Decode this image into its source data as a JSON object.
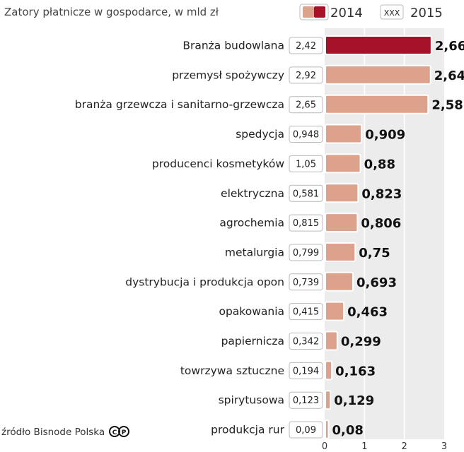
{
  "header": {
    "title": "Zatory płatnicze w gospodarce, w mld zł"
  },
  "legend": {
    "label_2014": "2014",
    "sample_value": "XXX",
    "label_2015": "2015"
  },
  "source": {
    "text": "źródło Bisnode Polska",
    "license_icon": "cc-copyright-icon"
  },
  "colors": {
    "bar": "#dda28c",
    "bar_highlight": "#a5122a",
    "plot_bg": "#ececec",
    "grid": "#ffffff"
  },
  "chart_data": {
    "type": "bar",
    "orientation": "horizontal",
    "title": "Zatory płatnicze w gospodarce, w mld zł",
    "xlabel": "",
    "ylabel": "",
    "xlim": [
      0,
      3
    ],
    "ticks": [
      "0",
      "1",
      "2",
      "3"
    ],
    "grid": true,
    "legend_position": "top-right",
    "highlight_index": 0,
    "categories": [
      {
        "label": "Branża budowlana",
        "v2014": "2,42",
        "v2015": "2,66",
        "value": 2.66
      },
      {
        "label": "przemysł spożywczy",
        "v2014": "2,92",
        "v2015": "2,64",
        "value": 2.64
      },
      {
        "label": "branża grzewcza i sanitarno-grzewcza",
        "v2014": "2,65",
        "v2015": "2,58",
        "value": 2.58
      },
      {
        "label": "spedycja",
        "v2014": "0,948",
        "v2015": "0,909",
        "value": 0.909
      },
      {
        "label": "producenci kosmetyków",
        "v2014": "1,05",
        "v2015": "0,88",
        "value": 0.88
      },
      {
        "label": "elektryczna",
        "v2014": "0,581",
        "v2015": "0,823",
        "value": 0.823
      },
      {
        "label": "agrochemia",
        "v2014": "0,815",
        "v2015": "0,806",
        "value": 0.806
      },
      {
        "label": "metalurgia",
        "v2014": "0,799",
        "v2015": "0,75",
        "value": 0.75
      },
      {
        "label": "dystrybucja i produkcja opon",
        "v2014": "0,739",
        "v2015": "0,693",
        "value": 0.693
      },
      {
        "label": "opakowania",
        "v2014": "0,415",
        "v2015": "0,463",
        "value": 0.463
      },
      {
        "label": "papiernicza",
        "v2014": "0,342",
        "v2015": "0,299",
        "value": 0.299
      },
      {
        "label": "towrzywa sztuczne",
        "v2014": "0,194",
        "v2015": "0,163",
        "value": 0.163
      },
      {
        "label": "spirytusowa",
        "v2014": "0,123",
        "v2015": "0,129",
        "value": 0.129
      },
      {
        "label": "produkcja rur",
        "v2014": "0,09",
        "v2015": "0,08",
        "value": 0.08
      }
    ]
  }
}
